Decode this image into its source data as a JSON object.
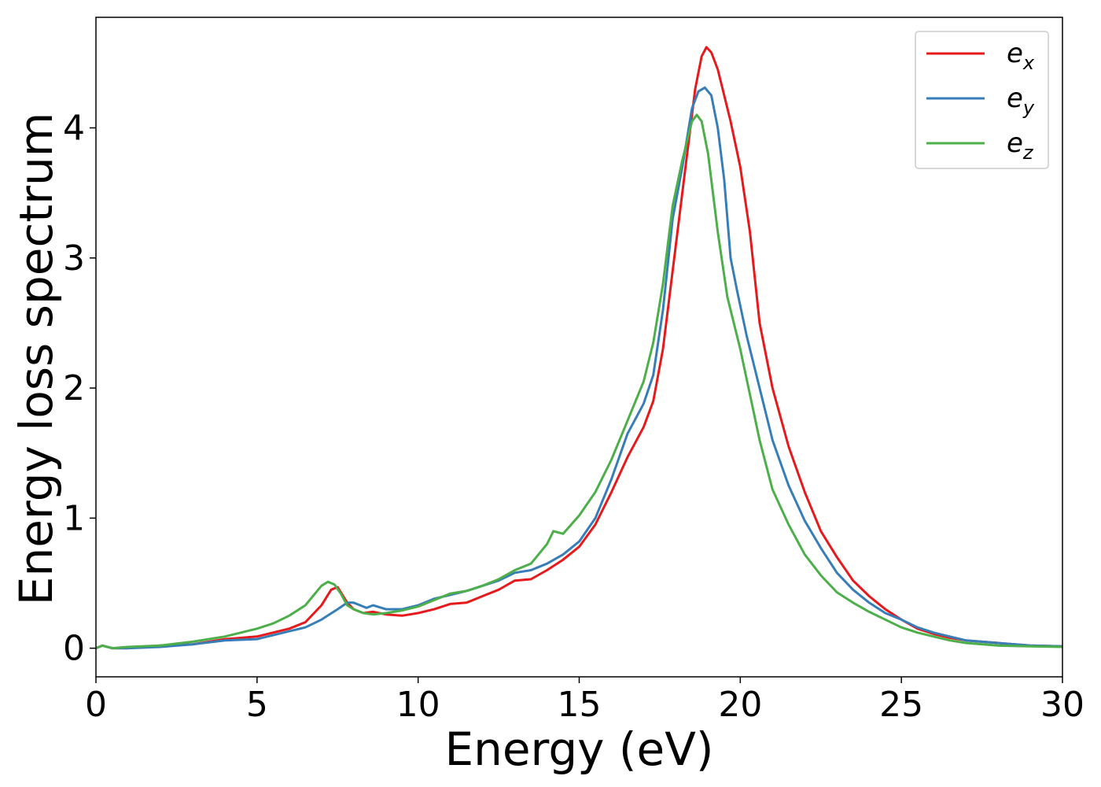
{
  "chart_data": {
    "type": "line",
    "xlabel": "Energy (eV)",
    "ylabel": "Energy loss spectrum",
    "xlim": [
      0,
      30
    ],
    "ylim": [
      -0.22,
      4.85
    ],
    "xticks": [
      0,
      5,
      10,
      15,
      20,
      25,
      30
    ],
    "yticks": [
      0,
      1,
      2,
      3,
      4
    ],
    "grid": false,
    "legend_position": "top-right",
    "series": [
      {
        "name": "e_x",
        "label_base": "e",
        "label_sub": "x",
        "color": "#e41a1c",
        "x": [
          0,
          0.2,
          0.5,
          1,
          2,
          3,
          4,
          5,
          5.5,
          6,
          6.5,
          7,
          7.3,
          7.5,
          7.8,
          8,
          8.3,
          8.6,
          9,
          9.5,
          10,
          10.5,
          11,
          11.5,
          12,
          12.5,
          13,
          13.5,
          14,
          14.5,
          15,
          15.5,
          16,
          16.5,
          17,
          17.3,
          17.6,
          18,
          18.3,
          18.6,
          18.8,
          18.95,
          19.1,
          19.3,
          19.5,
          19.7,
          20,
          20.3,
          20.6,
          21,
          21.5,
          22,
          22.5,
          23,
          23.5,
          24,
          24.5,
          25,
          25.5,
          26,
          26.5,
          27,
          28,
          29,
          30
        ],
        "y": [
          0,
          0.02,
          0.0,
          0.0,
          0.02,
          0.03,
          0.07,
          0.09,
          0.12,
          0.15,
          0.2,
          0.33,
          0.45,
          0.47,
          0.35,
          0.3,
          0.27,
          0.28,
          0.26,
          0.25,
          0.27,
          0.3,
          0.34,
          0.35,
          0.4,
          0.45,
          0.52,
          0.53,
          0.6,
          0.68,
          0.78,
          0.95,
          1.2,
          1.47,
          1.7,
          1.9,
          2.3,
          3.1,
          3.7,
          4.3,
          4.55,
          4.62,
          4.58,
          4.45,
          4.25,
          4.05,
          3.7,
          3.2,
          2.5,
          2.0,
          1.55,
          1.2,
          0.9,
          0.7,
          0.52,
          0.4,
          0.3,
          0.22,
          0.15,
          0.11,
          0.08,
          0.06,
          0.04,
          0.02,
          0.015
        ]
      },
      {
        "name": "e_y",
        "label_base": "e",
        "label_sub": "y",
        "color": "#377eb8",
        "x": [
          0,
          0.2,
          0.5,
          1,
          2,
          3,
          4,
          5,
          5.5,
          6,
          6.5,
          7,
          7.5,
          7.8,
          8,
          8.2,
          8.4,
          8.6,
          9,
          9.5,
          10,
          10.5,
          11,
          11.5,
          12,
          12.5,
          13,
          13.5,
          14,
          14.5,
          15,
          15.5,
          16,
          16.5,
          17,
          17.3,
          17.6,
          17.9,
          18.2,
          18.5,
          18.7,
          18.9,
          19.1,
          19.3,
          19.5,
          19.7,
          19.9,
          20.2,
          20.5,
          21,
          21.5,
          22,
          22.5,
          23,
          23.5,
          24,
          24.5,
          25,
          25.5,
          26,
          26.5,
          27,
          28,
          29,
          30
        ],
        "y": [
          0,
          0.02,
          0.0,
          0.0,
          0.01,
          0.03,
          0.06,
          0.07,
          0.1,
          0.13,
          0.16,
          0.22,
          0.3,
          0.35,
          0.35,
          0.33,
          0.31,
          0.33,
          0.3,
          0.3,
          0.33,
          0.38,
          0.41,
          0.44,
          0.48,
          0.52,
          0.58,
          0.6,
          0.65,
          0.72,
          0.82,
          1.0,
          1.3,
          1.65,
          1.88,
          2.1,
          2.6,
          3.3,
          3.7,
          4.15,
          4.28,
          4.31,
          4.25,
          4.0,
          3.6,
          3.0,
          2.75,
          2.4,
          2.1,
          1.6,
          1.25,
          0.98,
          0.77,
          0.58,
          0.45,
          0.35,
          0.27,
          0.22,
          0.16,
          0.12,
          0.09,
          0.06,
          0.04,
          0.02,
          0.015
        ]
      },
      {
        "name": "e_z",
        "label_base": "e",
        "label_sub": "z",
        "color": "#4daf4a",
        "x": [
          0,
          0.2,
          0.5,
          1,
          2,
          3,
          4,
          5,
          5.5,
          6,
          6.5,
          7,
          7.2,
          7.4,
          7.6,
          7.8,
          8,
          8.3,
          8.6,
          9,
          9.5,
          10,
          10.5,
          11,
          11.5,
          12,
          12.5,
          13,
          13.5,
          14,
          14.2,
          14.5,
          15,
          15.5,
          16,
          16.5,
          17,
          17.3,
          17.6,
          17.9,
          18.2,
          18.5,
          18.65,
          18.8,
          19,
          19.3,
          19.6,
          20,
          20.3,
          20.6,
          21,
          21.5,
          22,
          22.5,
          23,
          23.5,
          24,
          24.5,
          25,
          25.5,
          26,
          26.5,
          27,
          28,
          29,
          30
        ],
        "y": [
          0,
          0.02,
          0.0,
          0.01,
          0.02,
          0.05,
          0.09,
          0.15,
          0.19,
          0.25,
          0.33,
          0.48,
          0.51,
          0.49,
          0.42,
          0.33,
          0.3,
          0.27,
          0.26,
          0.27,
          0.29,
          0.32,
          0.37,
          0.42,
          0.44,
          0.48,
          0.53,
          0.6,
          0.65,
          0.8,
          0.9,
          0.88,
          1.02,
          1.2,
          1.45,
          1.75,
          2.05,
          2.35,
          2.8,
          3.4,
          3.75,
          4.05,
          4.1,
          4.05,
          3.8,
          3.2,
          2.7,
          2.3,
          1.95,
          1.6,
          1.22,
          0.95,
          0.72,
          0.56,
          0.43,
          0.35,
          0.28,
          0.22,
          0.16,
          0.12,
          0.09,
          0.06,
          0.04,
          0.02,
          0.015,
          0.01
        ]
      }
    ]
  }
}
